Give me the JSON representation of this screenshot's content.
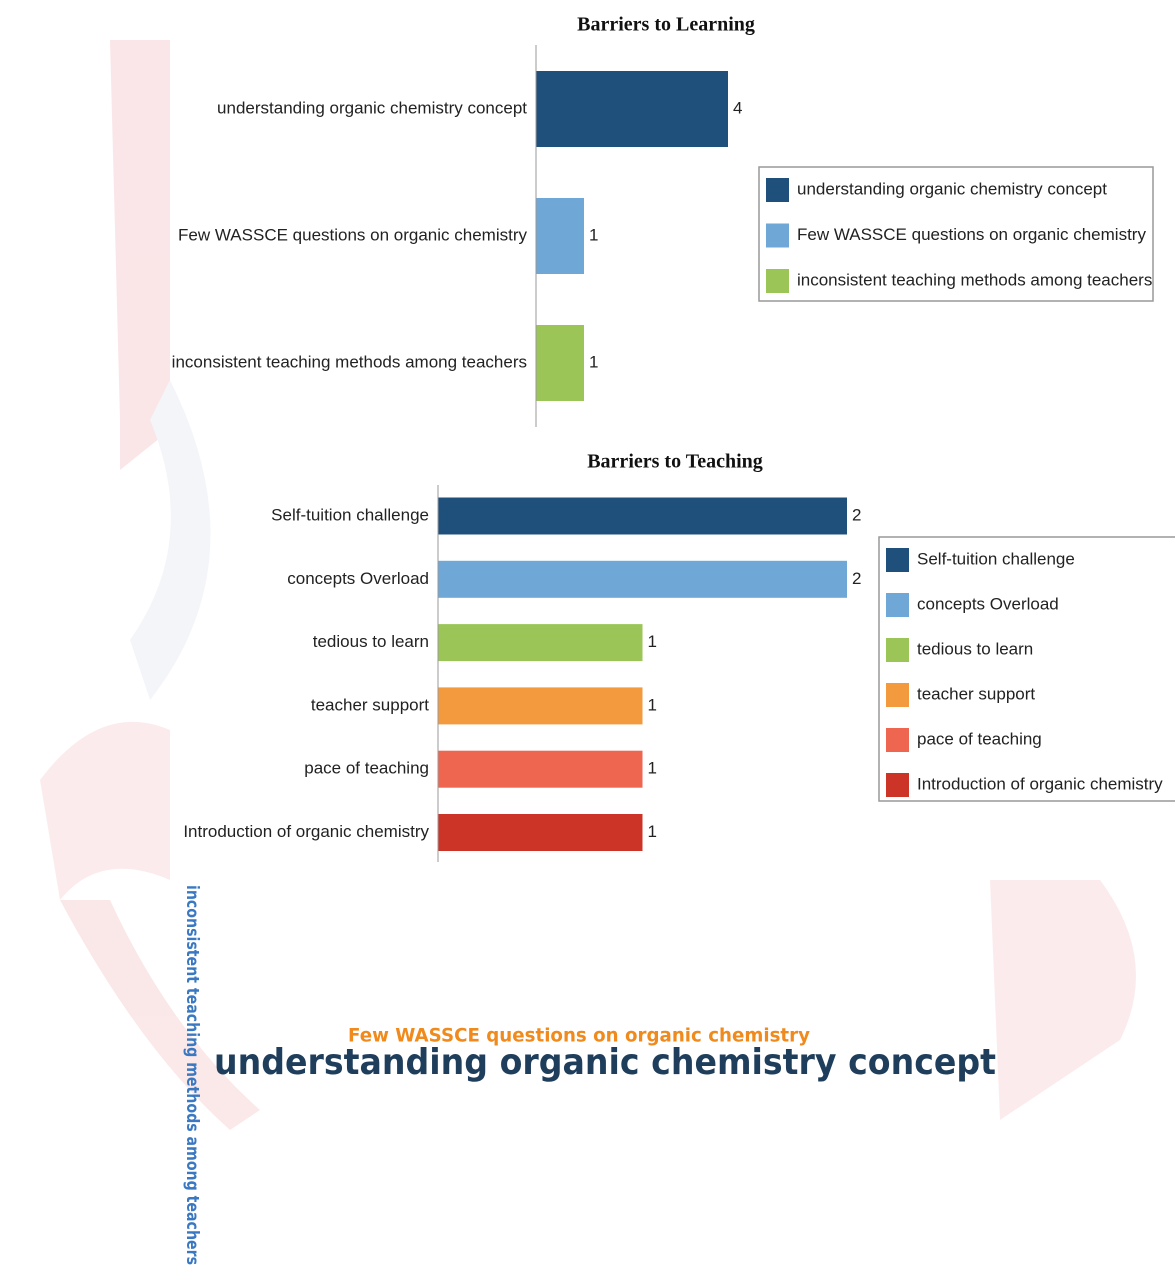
{
  "chart_data": [
    {
      "type": "bar",
      "orientation": "horizontal",
      "title": "Barriers to Learning",
      "categories": [
        "understanding organic chemistry concept",
        "Few WASSCE questions on organic chemistry",
        "inconsistent teaching methods among teachers"
      ],
      "values": [
        4,
        1,
        1
      ],
      "colors": [
        "#1f507c",
        "#6fa7d6",
        "#9bc657"
      ],
      "legend": "right"
    },
    {
      "type": "bar",
      "orientation": "horizontal",
      "title": "Barriers to Teaching",
      "categories": [
        "Self-tuition challenge",
        "concepts Overload",
        "tedious to learn",
        "teacher support",
        "pace of teaching",
        "Introduction of organic chemistry"
      ],
      "values": [
        2,
        2,
        1,
        1,
        1,
        1
      ],
      "colors": [
        "#1f507c",
        "#6fa7d6",
        "#9bc657",
        "#f39a3e",
        "#ee6650",
        "#cc3427"
      ],
      "legend": "right"
    }
  ],
  "word_cloud": {
    "words": [
      {
        "text": "inconsistent teaching methods among teachers",
        "color": "#3a78c2"
      },
      {
        "text": "Few WASSCE questions on organic chemistry",
        "color": "#f08a1c"
      },
      {
        "text": "understanding organic chemistry concept",
        "color": "#1f3e5c"
      }
    ]
  }
}
